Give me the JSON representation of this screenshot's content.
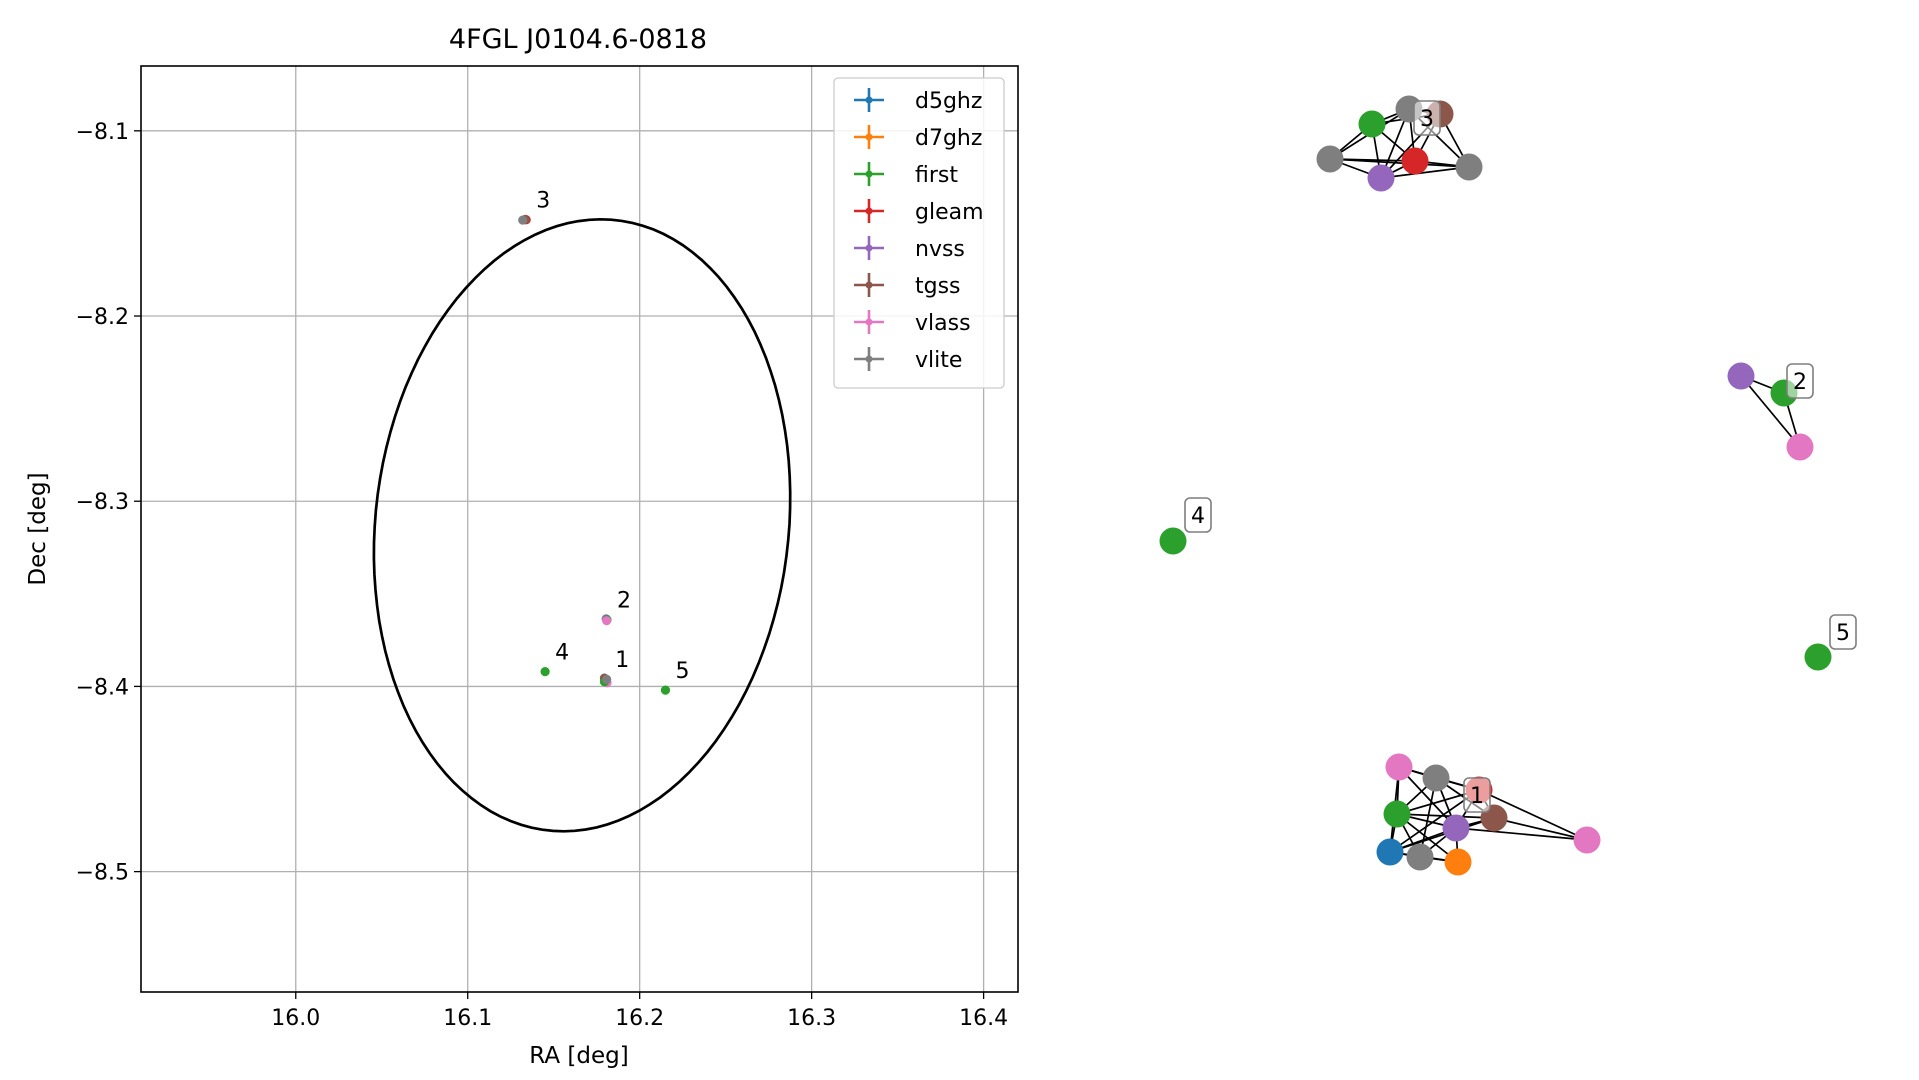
{
  "chart_data": [
    {
      "type": "scatter",
      "title": "4FGL J0104.6-0818",
      "xlabel": "RA [deg]",
      "ylabel": "Dec [deg]",
      "xlim": [
        15.91,
        16.42
      ],
      "ylim": [
        -8.565,
        -8.065
      ],
      "xticks": [
        16.0,
        16.1,
        16.2,
        16.3,
        16.4
      ],
      "xtick_labels": [
        "16.0",
        "16.1",
        "16.2",
        "16.3",
        "16.4"
      ],
      "yticks": [
        -8.1,
        -8.2,
        -8.3,
        -8.4,
        -8.5
      ],
      "ytick_labels": [
        "−8.1",
        "−8.2",
        "−8.3",
        "−8.4",
        "−8.5"
      ],
      "grid": true,
      "legend_position": "upper-right",
      "legend": [
        {
          "label": "d5ghz",
          "color": "#1f77b4"
        },
        {
          "label": "d7ghz",
          "color": "#ff7f0e"
        },
        {
          "label": "first",
          "color": "#2ca02c"
        },
        {
          "label": "gleam",
          "color": "#d62728"
        },
        {
          "label": "nvss",
          "color": "#9467bd"
        },
        {
          "label": "tgss",
          "color": "#8c564b"
        },
        {
          "label": "vlass",
          "color": "#e377c2"
        },
        {
          "label": "vlite",
          "color": "#7f7f7f"
        }
      ],
      "ellipse": {
        "center": [
          16.1665,
          -8.313
        ],
        "semi_major": 0.166,
        "semi_minor": 0.12,
        "angle_deg": -8,
        "color": "#000000"
      },
      "points": [
        {
          "survey": "gleam",
          "x": 16.18,
          "y": -8.396
        },
        {
          "survey": "tgss",
          "x": 16.1795,
          "y": -8.3955
        },
        {
          "survey": "nvss",
          "x": 16.1805,
          "y": -8.397
        },
        {
          "survey": "vlass",
          "x": 16.181,
          "y": -8.398
        },
        {
          "survey": "first",
          "x": 16.1795,
          "y": -8.3975
        },
        {
          "survey": "vlite",
          "x": 16.1808,
          "y": -8.3962
        },
        {
          "survey": "nvss",
          "x": 16.1805,
          "y": -8.3635
        },
        {
          "survey": "first",
          "x": 16.181,
          "y": -8.364
        },
        {
          "survey": "vlass",
          "x": 16.1808,
          "y": -8.3645
        },
        {
          "survey": "gleam",
          "x": 16.134,
          "y": -8.148
        },
        {
          "survey": "tgss",
          "x": 16.1335,
          "y": -8.1478
        },
        {
          "survey": "vlite",
          "x": 16.132,
          "y": -8.1482
        },
        {
          "survey": "first",
          "x": 16.145,
          "y": -8.392
        },
        {
          "survey": "first",
          "x": 16.215,
          "y": -8.402
        }
      ],
      "annotations": [
        {
          "text": "1",
          "x": 16.18,
          "y": -8.396
        },
        {
          "text": "2",
          "x": 16.181,
          "y": -8.364
        },
        {
          "text": "3",
          "x": 16.134,
          "y": -8.148
        },
        {
          "text": "4",
          "x": 16.145,
          "y": -8.392
        },
        {
          "text": "5",
          "x": 16.215,
          "y": -8.402
        }
      ]
    },
    {
      "type": "network",
      "title": "",
      "components": [
        {
          "label": "1",
          "nodes": [
            {
              "color": "#e377c2"
            },
            {
              "color": "#7f7f7f"
            },
            {
              "color": "#d62728"
            },
            {
              "color": "#2ca02c"
            },
            {
              "color": "#9467bd"
            },
            {
              "color": "#8c564b"
            },
            {
              "color": "#1f77b4"
            },
            {
              "color": "#7f7f7f"
            },
            {
              "color": "#ff7f0e"
            },
            {
              "color": "#e377c2"
            }
          ]
        },
        {
          "label": "2",
          "nodes": [
            {
              "color": "#9467bd"
            },
            {
              "color": "#2ca02c"
            },
            {
              "color": "#e377c2"
            }
          ]
        },
        {
          "label": "3",
          "nodes": [
            {
              "color": "#7f7f7f"
            },
            {
              "color": "#8c564b"
            },
            {
              "color": "#2ca02c"
            },
            {
              "color": "#d62728"
            },
            {
              "color": "#7f7f7f"
            },
            {
              "color": "#9467bd"
            },
            {
              "color": "#7f7f7f"
            }
          ]
        },
        {
          "label": "4",
          "nodes": [
            {
              "color": "#2ca02c"
            }
          ]
        },
        {
          "label": "5",
          "nodes": [
            {
              "color": "#2ca02c"
            }
          ]
        }
      ]
    }
  ]
}
